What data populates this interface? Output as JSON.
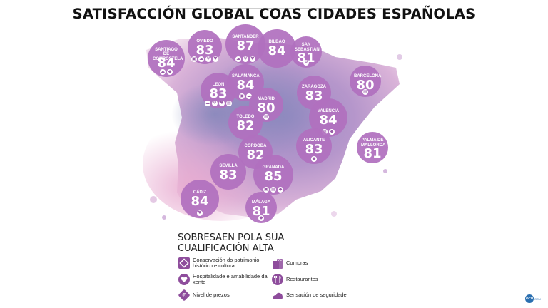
{
  "title": "SATISFACCIÓN GLOBAL COAS CIDADES ESPAÑOLAS",
  "colors": {
    "bubble": "#b070be",
    "legend_icon": "#8e4d9c",
    "map_light": "#e6c7e3",
    "map_mid": "#b998cc",
    "map_dark": "#8f83b8"
  },
  "cities": [
    {
      "name": "SANTIAGO DE COMPOSTELA",
      "score": "84",
      "icons": [
        "security-icon",
        "price-icon"
      ]
    },
    {
      "name": "OVIEDO",
      "score": "83",
      "icons": [
        "heritage-icon",
        "security-icon",
        "restaurants-icon",
        "hospitality-icon"
      ]
    },
    {
      "name": "SANTANDER",
      "score": "87",
      "icons": [
        "security-icon",
        "restaurants-icon",
        "hospitality-icon"
      ]
    },
    {
      "name": "BILBAO",
      "score": "84",
      "icons": []
    },
    {
      "name": "SAN SEBASTIÁN",
      "score": "81",
      "icons": [
        "restaurants-icon"
      ]
    },
    {
      "name": "LEON",
      "score": "83",
      "icons": [
        "security-icon",
        "restaurants-icon",
        "hospitality-icon",
        "shopping-icon"
      ]
    },
    {
      "name": "SALAMANCA",
      "score": "84",
      "icons": [
        "heritage-icon",
        "security-icon"
      ]
    },
    {
      "name": "MADRID",
      "score": "80",
      "icons": [
        "shopping-icon"
      ]
    },
    {
      "name": "ZARAGOZA",
      "score": "83",
      "icons": []
    },
    {
      "name": "BARCELONA",
      "score": "80",
      "icons": [
        "shopping-icon"
      ]
    },
    {
      "name": "TOLEDO",
      "score": "82",
      "icons": []
    },
    {
      "name": "VALENCIA",
      "score": "84",
      "icons": [
        "shopping-icon",
        "price-icon"
      ]
    },
    {
      "name": "CÓRDOBA",
      "score": "82",
      "icons": []
    },
    {
      "name": "ALICANTE",
      "score": "83",
      "icons": [
        "price-icon"
      ]
    },
    {
      "name": "PALMA DE MALLORCA",
      "score": "81",
      "icons": []
    },
    {
      "name": "SEVILLA",
      "score": "83",
      "icons": []
    },
    {
      "name": "GRANADA",
      "score": "85",
      "icons": [
        "heritage-icon",
        "shopping-icon",
        "price-icon"
      ]
    },
    {
      "name": "CÁDIZ",
      "score": "84",
      "icons": [
        "hospitality-icon"
      ]
    },
    {
      "name": "MÁLAGA",
      "score": "81",
      "icons": [
        "price-icon"
      ]
    }
  ],
  "legend": {
    "title": "SOBRESAEN POLA SÚA CUALIFICACIÓN ALTA",
    "items": [
      {
        "icon": "heritage-icon",
        "label": "Conservación do patrimonio histórico e cultural"
      },
      {
        "icon": "hospitality-icon",
        "label": "Hospitalidade e amabilidade da xente"
      },
      {
        "icon": "price-icon",
        "label": "Nivel de prezos"
      },
      {
        "icon": "shopping-icon",
        "label": "Compras"
      },
      {
        "icon": "restaurants-icon",
        "label": "Restaurantes"
      },
      {
        "icon": "security-icon",
        "label": "Sensación de seguridade"
      }
    ]
  },
  "logo": {
    "mark": "OCU",
    "text": "OCU"
  }
}
